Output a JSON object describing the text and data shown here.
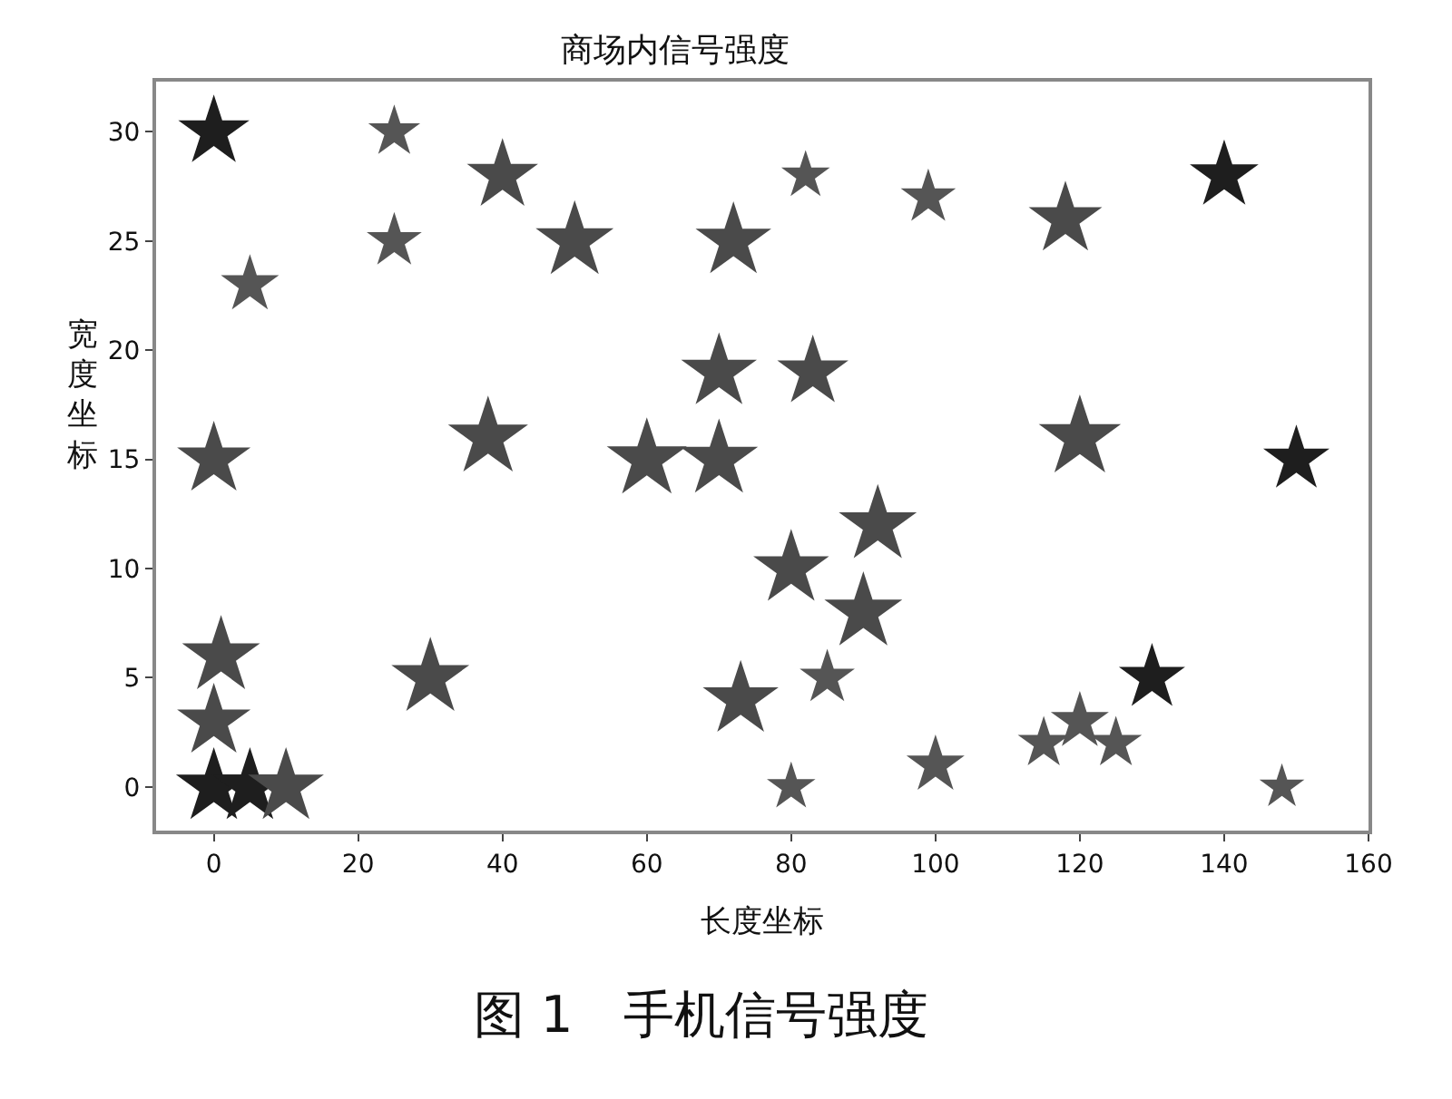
{
  "chart_data": {
    "type": "bubble",
    "title": "商场内信号强度",
    "xlabel": "长度坐标",
    "ylabel": "宽度坐标",
    "annotations": [
      "图 1　手机信号强度"
    ],
    "x": [
      0,
      25,
      40,
      82,
      99,
      118,
      140,
      25,
      50,
      72,
      5,
      70,
      83,
      0,
      38,
      60,
      70,
      120,
      150,
      92,
      80,
      90,
      1,
      0,
      30,
      73,
      85,
      130,
      120,
      115,
      125,
      100,
      80,
      148,
      0,
      5,
      10
    ],
    "values": [
      30,
      30,
      28,
      28,
      27,
      26,
      28,
      25,
      25,
      25,
      23,
      19,
      19,
      15,
      16,
      15,
      15,
      16,
      15,
      12,
      10,
      8,
      6,
      3,
      5,
      4,
      5,
      5,
      3,
      2,
      2,
      1,
      0,
      0,
      0,
      0,
      0
    ],
    "sizes": [
      0.75,
      0.4,
      0.75,
      0.35,
      0.45,
      0.8,
      0.7,
      0.45,
      0.9,
      0.85,
      0.5,
      0.85,
      0.75,
      0.8,
      0.95,
      0.95,
      0.9,
      1,
      0.65,
      0.9,
      0.85,
      0.9,
      0.9,
      0.8,
      0.9,
      0.85,
      0.45,
      0.65,
      0.5,
      0.4,
      0.4,
      0.5,
      0.35,
      0.3,
      0.85,
      0.85,
      0.85
    ],
    "colors": [
      "#1e1e1e",
      "#555555",
      "#4a4a4a",
      "#555555",
      "#555555",
      "#4a4a4a",
      "#1e1e1e",
      "#555555",
      "#4a4a4a",
      "#4a4a4a",
      "#555555",
      "#4a4a4a",
      "#4a4a4a",
      "#4a4a4a",
      "#4a4a4a",
      "#4a4a4a",
      "#4a4a4a",
      "#4a4a4a",
      "#1e1e1e",
      "#4a4a4a",
      "#4a4a4a",
      "#4a4a4a",
      "#4a4a4a",
      "#4a4a4a",
      "#4a4a4a",
      "#4a4a4a",
      "#555555",
      "#1e1e1e",
      "#555555",
      "#555555",
      "#555555",
      "#555555",
      "#555555",
      "#555555",
      "#1e1e1e",
      "#1e1e1e",
      "#4a4a4a"
    ],
    "marker": "star",
    "xlim": [
      -8,
      160
    ],
    "xticks": [
      0,
      20,
      40,
      60,
      80,
      100,
      120,
      140,
      160
    ],
    "ylim": [
      -2,
      32.3
    ],
    "yticks": [
      0,
      5,
      10,
      15,
      20,
      25,
      30
    ]
  }
}
